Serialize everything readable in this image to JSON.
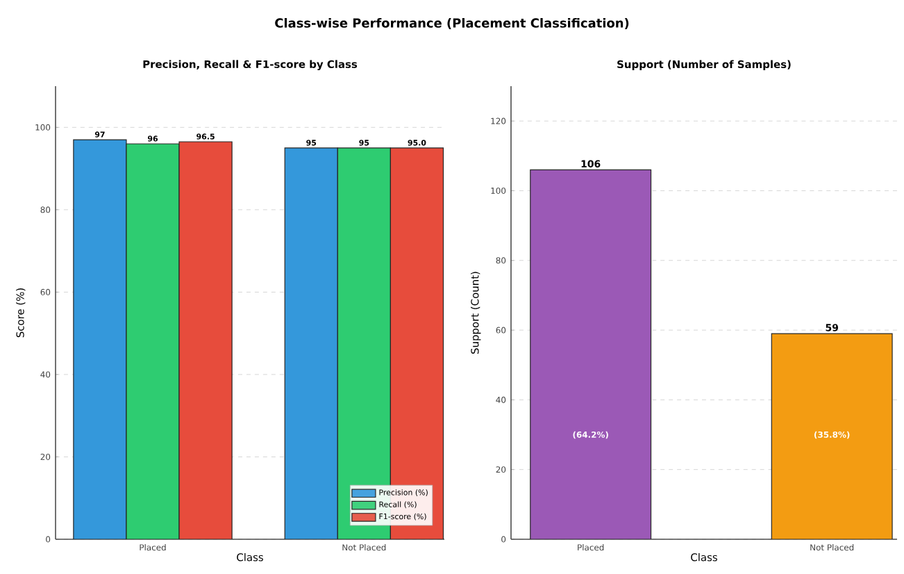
{
  "chart_data": [
    {
      "type": "bar",
      "title": "Precision, Recall & F1-score by Class",
      "xlabel": "Class",
      "ylabel": "Score (%)",
      "annotations": [
        "Class-wise Performance (Placement Classification)"
      ],
      "categories": [
        "Placed",
        "Not Placed"
      ],
      "series": [
        {
          "name": "Precision (%)",
          "color": "#3498db",
          "values": [
            97,
            95
          ],
          "value_labels": [
            "97",
            "95"
          ]
        },
        {
          "name": "Recall (%)",
          "color": "#2ecc71",
          "values": [
            96,
            95
          ],
          "value_labels": [
            "96",
            "95"
          ]
        },
        {
          "name": "F1-score (%)",
          "color": "#e74c3c",
          "values": [
            96.5,
            95.0
          ],
          "value_labels": [
            "96.5",
            "95.0"
          ]
        }
      ],
      "ylim": [
        0,
        110
      ],
      "yticks": [
        0,
        20,
        40,
        60,
        80,
        100
      ],
      "grid": "y",
      "legend": "bottom right"
    },
    {
      "type": "bar",
      "title": "Support (Number of Samples)",
      "xlabel": "Class",
      "ylabel": "Support (Count)",
      "categories": [
        "Placed",
        "Not Placed"
      ],
      "values": [
        106,
        59
      ],
      "colors": [
        "#9b59b6",
        "#f39c12"
      ],
      "data_labels": true,
      "annotations": [
        "(64.2%)",
        "(35.8%)"
      ],
      "ylim": [
        0,
        130
      ],
      "yticks": [
        0,
        20,
        40,
        60,
        80,
        100,
        120
      ],
      "grid": "y"
    }
  ]
}
